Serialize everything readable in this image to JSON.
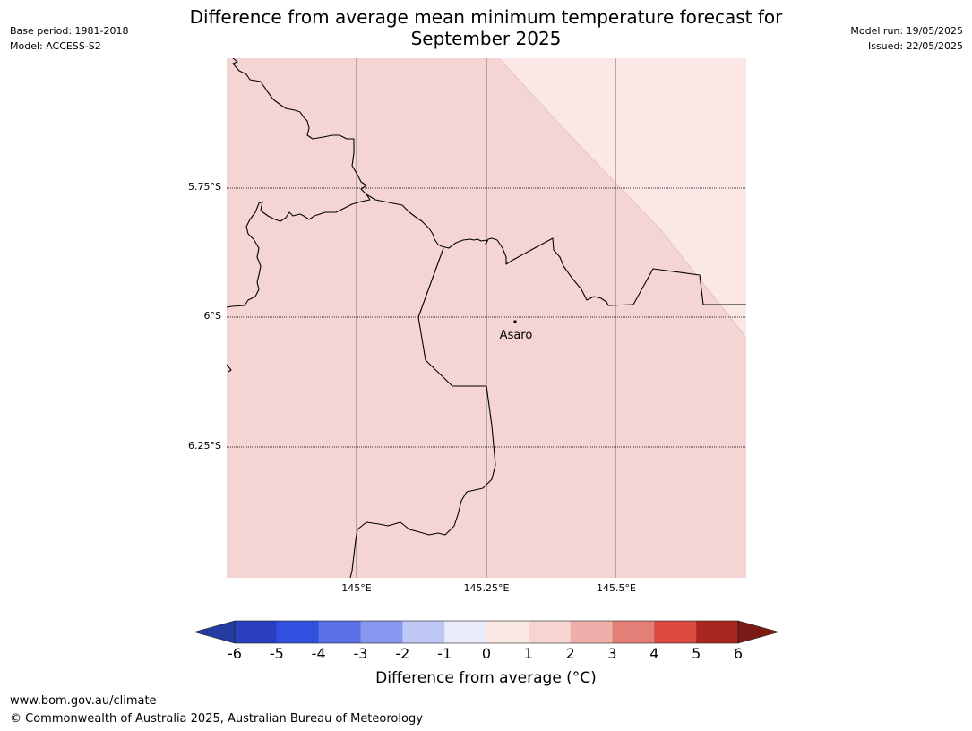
{
  "header": {
    "base_period": "Base period: 1981-2018",
    "model": "Model: ACCESS-S2",
    "model_run": "Model run: 19/05/2025",
    "issued": "Issued: 22/05/2025",
    "title_line1": "Difference from average mean minimum temperature forecast for",
    "title_line2": "September 2025"
  },
  "map": {
    "latitude_labels": [
      "5.75°S",
      "6°S",
      "6.25°S"
    ],
    "longitude_labels": [
      "145°E",
      "145.25°E",
      "145.5°E"
    ],
    "place": {
      "name": "Asaro"
    },
    "regions": [
      {
        "class": "0 to 1",
        "color": "#fbe8e6"
      },
      {
        "class": "1 to 2",
        "color": "#f5d5d3"
      }
    ]
  },
  "colorbar": {
    "label": "Difference from average (°C)",
    "ticks": [
      "-6",
      "-5",
      "-4",
      "-3",
      "-2",
      "-1",
      "0",
      "1",
      "2",
      "3",
      "4",
      "5",
      "6"
    ],
    "colors": [
      "#243c9e",
      "#2a3fbd",
      "#3050e0",
      "#5b70e6",
      "#8597ee",
      "#bfc7f4",
      "#e9ecfb",
      "#fbe9e7",
      "#f6d4d2",
      "#eeafaa",
      "#e47f77",
      "#dc4a3f",
      "#aa2720",
      "#7c1a15"
    ]
  },
  "footer": {
    "url": "www.bom.gov.au/climate",
    "copyright": "© Commonwealth of Australia 2025, Australian Bureau of Meteorology"
  }
}
